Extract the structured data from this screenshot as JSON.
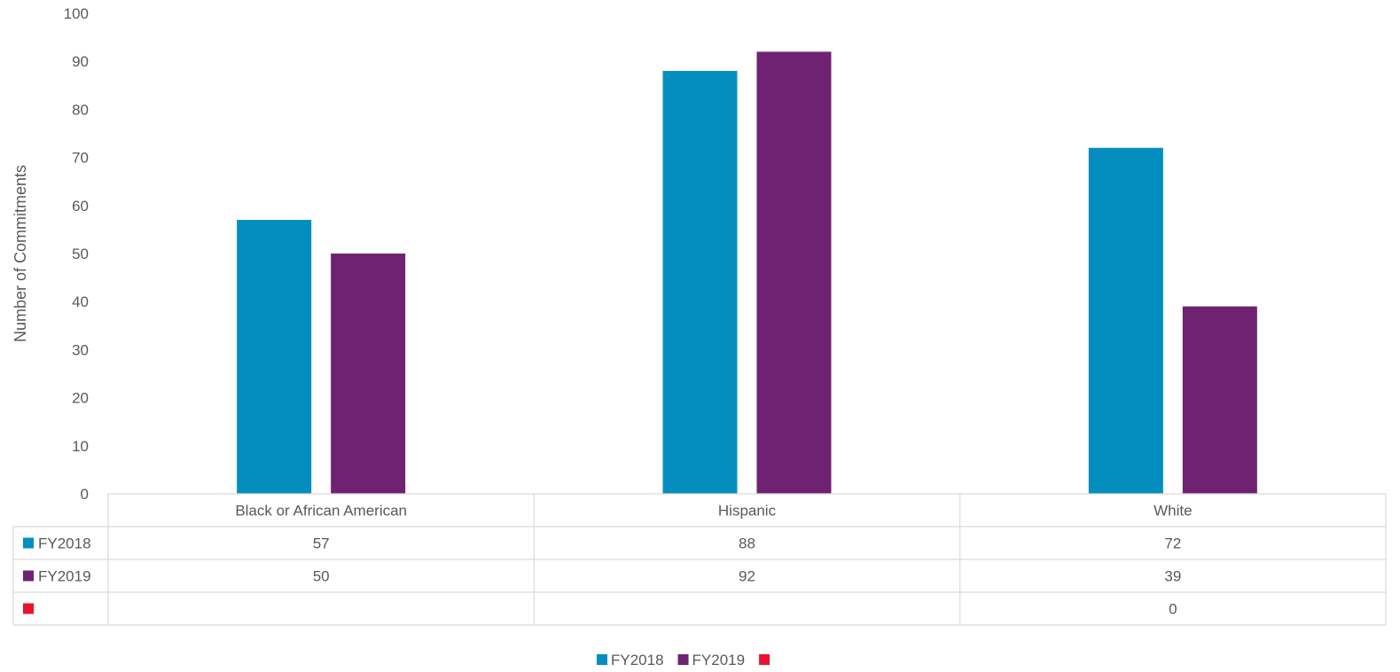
{
  "chart_data": {
    "type": "bar",
    "ylabel": "Number of Commitments",
    "ylim": [
      0,
      100
    ],
    "yticks": [
      0,
      10,
      20,
      30,
      40,
      50,
      60,
      70,
      80,
      90,
      100
    ],
    "categories": [
      "Black or African American",
      "Hispanic",
      "White"
    ],
    "series": [
      {
        "name": "FY2018",
        "color": "#038ebf",
        "values": [
          57,
          88,
          72
        ]
      },
      {
        "name": "FY2019",
        "color": "#6e2271",
        "values": [
          50,
          92,
          39
        ]
      },
      {
        "name": "",
        "color": "#e8142e",
        "values": [
          null,
          null,
          0
        ]
      }
    ],
    "legend_position": "bottom",
    "data_table": true,
    "grid": false
  }
}
